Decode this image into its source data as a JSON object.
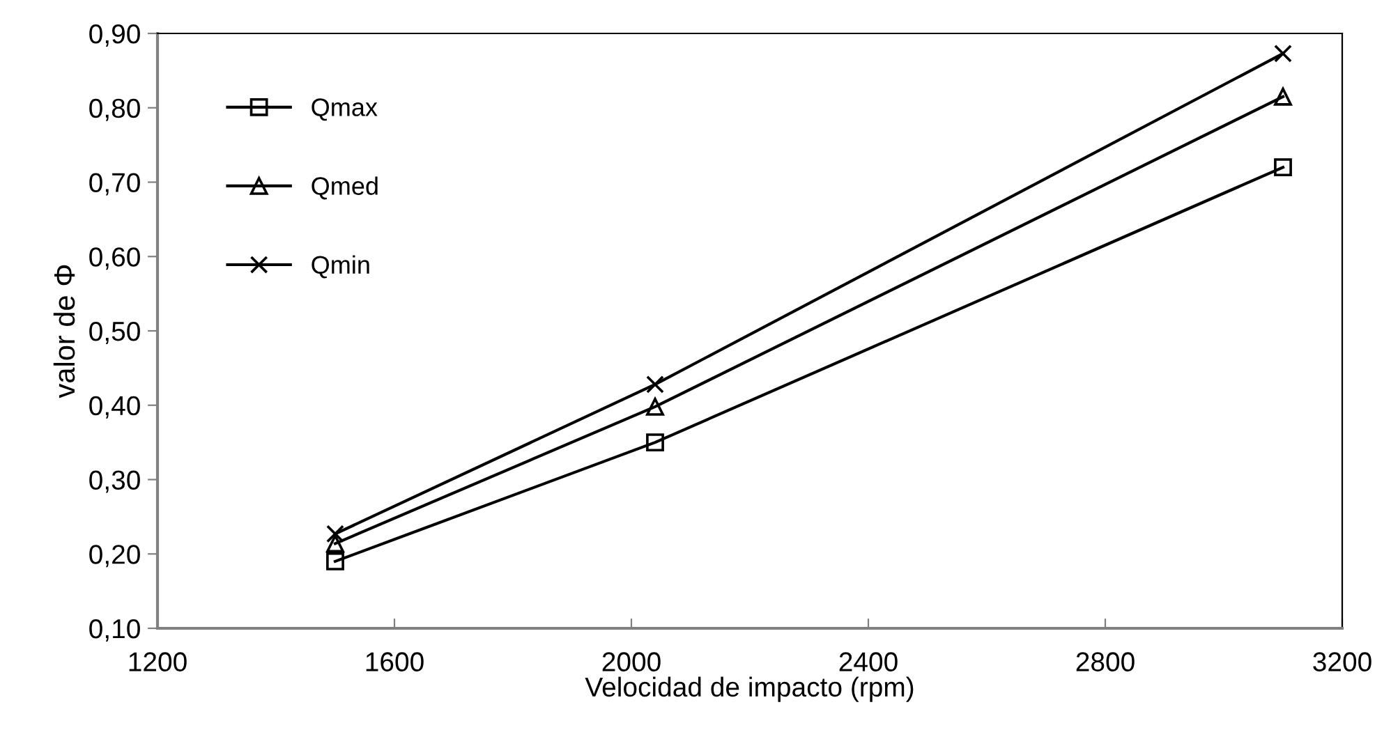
{
  "chart_data": {
    "type": "line",
    "xlabel": "Velocidad de impacto (rpm)",
    "ylabel": "valor de Φ",
    "x": [
      1500,
      2040,
      3100
    ],
    "series": [
      {
        "name": "Qmax",
        "color": "#000000",
        "marker": "square",
        "values": [
          0.19,
          0.35,
          0.72
        ]
      },
      {
        "name": "Qmed",
        "color": "#000000",
        "marker": "triangle",
        "values": [
          0.214,
          0.398,
          0.815
        ]
      },
      {
        "name": "Qmin",
        "color": "#000000",
        "marker": "cross",
        "values": [
          0.227,
          0.428,
          0.873
        ]
      }
    ],
    "xlim": [
      1200,
      3200
    ],
    "xticks": [
      1200,
      1600,
      2000,
      2400,
      2800,
      3200
    ],
    "ylim": [
      0.1,
      0.9
    ],
    "yticks": [
      {
        "value": 0.1,
        "label": "0,10"
      },
      {
        "value": 0.2,
        "label": "0,20"
      },
      {
        "value": 0.3,
        "label": "0,30"
      },
      {
        "value": 0.4,
        "label": "0,40"
      },
      {
        "value": 0.5,
        "label": "0,50"
      },
      {
        "value": 0.6,
        "label": "0,60"
      },
      {
        "value": 0.7,
        "label": "0,70"
      },
      {
        "value": 0.8,
        "label": "0,80"
      },
      {
        "value": 0.9,
        "label": "0,90"
      }
    ],
    "grid": false,
    "legend": "top left",
    "line_style": "solid"
  }
}
